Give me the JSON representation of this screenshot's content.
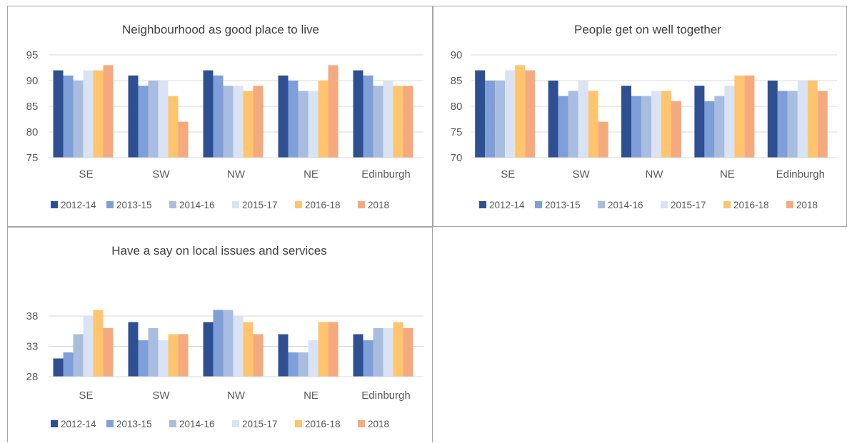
{
  "series_names": [
    "2012-14",
    "2013-15",
    "2014-16",
    "2015-17",
    "2016-18",
    "2018"
  ],
  "colors": [
    "#2f4f93",
    "#7f9fd8",
    "#a8bde0",
    "#dae3f3",
    "#ffc56e",
    "#f4aa7e"
  ],
  "chart_data": [
    {
      "type": "bar",
      "title": "Neighbourhood as good place to live",
      "categories": [
        "SE",
        "SW",
        "NW",
        "NE",
        "Edinburgh"
      ],
      "ylim": [
        75,
        95
      ],
      "yticks": [
        75,
        80,
        85,
        90,
        95
      ],
      "grid": true,
      "legend_position": "bottom",
      "series": [
        {
          "name": "2012-14",
          "values": [
            92,
            91,
            92,
            91,
            92
          ]
        },
        {
          "name": "2013-15",
          "values": [
            91,
            89,
            91,
            90,
            91
          ]
        },
        {
          "name": "2014-16",
          "values": [
            90,
            90,
            89,
            88,
            89
          ]
        },
        {
          "name": "2015-17",
          "values": [
            92,
            90,
            89,
            88,
            90
          ]
        },
        {
          "name": "2016-18",
          "values": [
            92,
            87,
            88,
            90,
            89
          ]
        },
        {
          "name": "2018",
          "values": [
            93,
            82,
            89,
            93,
            89
          ]
        }
      ]
    },
    {
      "type": "bar",
      "title": "People get on well together",
      "categories": [
        "SE",
        "SW",
        "NW",
        "NE",
        "Edinburgh"
      ],
      "ylim": [
        70,
        90
      ],
      "yticks": [
        70,
        75,
        80,
        85,
        90
      ],
      "grid": true,
      "legend_position": "bottom",
      "series": [
        {
          "name": "2012-14",
          "values": [
            87,
            85,
            84,
            84,
            85
          ]
        },
        {
          "name": "2013-15",
          "values": [
            85,
            82,
            82,
            81,
            83
          ]
        },
        {
          "name": "2014-16",
          "values": [
            85,
            83,
            82,
            82,
            83
          ]
        },
        {
          "name": "2015-17",
          "values": [
            87,
            85,
            83,
            84,
            85
          ]
        },
        {
          "name": "2016-18",
          "values": [
            88,
            83,
            83,
            86,
            85
          ]
        },
        {
          "name": "2018",
          "values": [
            87,
            77,
            81,
            86,
            83
          ]
        }
      ]
    },
    {
      "type": "bar",
      "title": "Have a say on local issues and services",
      "categories": [
        "SE",
        "SW",
        "NW",
        "NE",
        "Edinburgh"
      ],
      "ylim": [
        28,
        40
      ],
      "yticks": [
        28,
        33,
        38
      ],
      "grid": true,
      "legend_position": "bottom",
      "series": [
        {
          "name": "2012-14",
          "values": [
            31,
            37,
            37,
            35,
            35
          ]
        },
        {
          "name": "2013-15",
          "values": [
            32,
            34,
            39,
            32,
            34
          ]
        },
        {
          "name": "2014-16",
          "values": [
            35,
            36,
            39,
            32,
            36
          ]
        },
        {
          "name": "2015-17",
          "values": [
            38,
            34,
            38,
            34,
            36
          ]
        },
        {
          "name": "2016-18",
          "values": [
            39,
            35,
            37,
            37,
            37
          ]
        },
        {
          "name": "2018",
          "values": [
            36,
            35,
            35,
            37,
            36
          ]
        }
      ]
    }
  ]
}
